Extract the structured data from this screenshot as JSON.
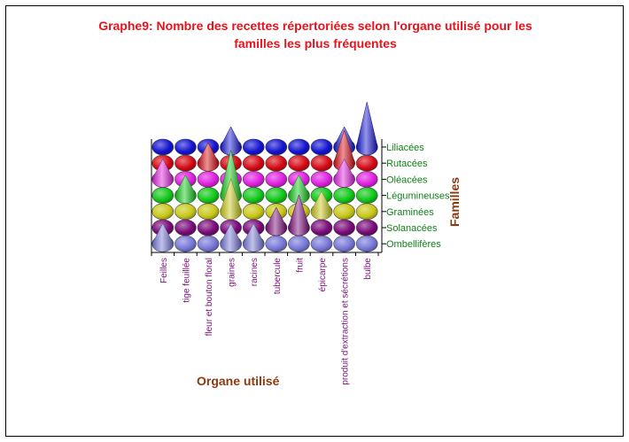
{
  "chart_data": {
    "type": "3d-bar",
    "title_lines": [
      "Graphe9: Nombre des recettes répertoriées selon l'organe utilisé pour les",
      "familles les plus fréquentes"
    ],
    "xlabel": "Organe utilisé",
    "ylabel": "Familles",
    "categories": [
      "Feilles",
      "tige feuillée",
      "fleur et bouton floral",
      "graines",
      "racines",
      "tubercule",
      "fruit",
      "épicarpe",
      "produit d'extraction et sécrétions",
      "bulbe"
    ],
    "series": [
      {
        "name": "Liliacées",
        "color": "#1414d2",
        "values": [
          0,
          0,
          0,
          1,
          0,
          0,
          0,
          0,
          1,
          3
        ]
      },
      {
        "name": "Rutacées",
        "color": "#d60a14",
        "values": [
          0,
          0,
          1,
          0,
          0,
          0,
          0,
          0,
          2,
          0
        ]
      },
      {
        "name": "Oléacées",
        "color": "#e020e0",
        "values": [
          1,
          0,
          0,
          0,
          0,
          0,
          0,
          0,
          1,
          0
        ]
      },
      {
        "name": "Légumineuses",
        "color": "#10c818",
        "values": [
          0,
          1,
          0,
          3,
          0,
          0,
          1,
          0,
          0,
          0
        ]
      },
      {
        "name": "Graminées",
        "color": "#c8c818",
        "values": [
          0,
          0,
          0,
          2,
          0,
          0,
          0,
          1,
          0,
          0
        ]
      },
      {
        "name": "Solanacées",
        "color": "#7a0a7a",
        "values": [
          0,
          0,
          0,
          0,
          0,
          1,
          2,
          0,
          0,
          0
        ]
      },
      {
        "name": "Ombellifères",
        "color": "#7878d8",
        "values": [
          1,
          0,
          0,
          1,
          1,
          0,
          0,
          0,
          0,
          0
        ]
      }
    ],
    "grid": false,
    "legend": "right"
  }
}
